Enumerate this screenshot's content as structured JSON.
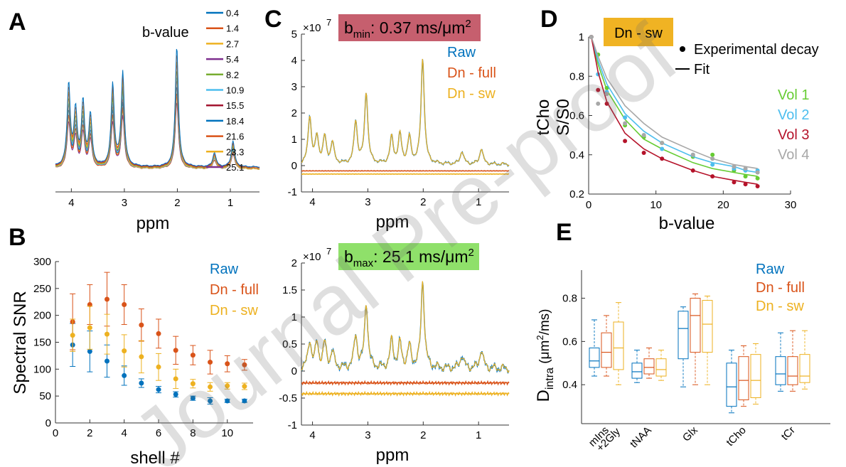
{
  "colors": {
    "raw": "#0072bd",
    "dn_full": "#d95319",
    "dn_sw": "#edb120",
    "vol1": "#66cc33",
    "vol2": "#4dbeee",
    "vol3": "#b5132a",
    "vol4": "#a8a8a8",
    "bmin_box": "#c65f6e",
    "bmax_box": "#8fe06a",
    "dnsw_box": "#f0b323"
  },
  "panels": {
    "A": {
      "letter": "A"
    },
    "B": {
      "letter": "B"
    },
    "C": {
      "letter": "C"
    },
    "D": {
      "letter": "D"
    },
    "E": {
      "letter": "E"
    }
  },
  "watermark": "Journal Pre-proof",
  "chart_data": [
    {
      "id": "A",
      "type": "line",
      "xlabel": "ppm",
      "x_reversed": true,
      "xlim": [
        4.3,
        0.45
      ],
      "x_ticks": [
        "4",
        "3",
        "2",
        "1"
      ],
      "legend_title": "b-value",
      "series_colors": [
        "#0072bd",
        "#d95319",
        "#edb120",
        "#7e2f8e",
        "#77ac30",
        "#4dbeee",
        "#a2142f",
        "#0072bd",
        "#d95319",
        "#edb120",
        "#7e2f8e"
      ],
      "legend": [
        "0.4",
        "1.4",
        "2.7",
        "5.4",
        "8.2",
        "10.9",
        "15.5",
        "18.4",
        "21.6",
        "23.3",
        "25.1"
      ],
      "peaks_ppm": [
        4.05,
        3.92,
        3.78,
        3.64,
        3.22,
        3.03,
        2.01,
        1.3,
        0.95
      ],
      "peak_relative_height_max": [
        0.68,
        0.45,
        0.52,
        0.42,
        0.68,
        0.78,
        1.0,
        0.12,
        0.22
      ]
    },
    {
      "id": "B",
      "type": "scatter",
      "xlabel": "shell #",
      "ylabel": "Spectral SNR",
      "xlim": [
        0,
        11.5
      ],
      "ylim": [
        0,
        300
      ],
      "x_ticks": [
        "0",
        "2",
        "4",
        "6",
        "8",
        "10"
      ],
      "y_ticks": [
        "0",
        "50",
        "100",
        "150",
        "200",
        "250",
        "300"
      ],
      "x": [
        1,
        2,
        3,
        4,
        5,
        6,
        7,
        8,
        9,
        10,
        11
      ],
      "series": [
        {
          "name": "Raw",
          "values": [
            145,
            133,
            115,
            88,
            74,
            62,
            53,
            46,
            41,
            41,
            41
          ],
          "err": [
            40,
            38,
            30,
            18,
            8,
            6,
            5,
            4,
            6,
            3,
            3
          ]
        },
        {
          "name": "Dn - full",
          "values": [
            188,
            220,
            230,
            220,
            182,
            166,
            135,
            126,
            113,
            110,
            108
          ],
          "err": [
            52,
            37,
            50,
            37,
            30,
            27,
            26,
            18,
            22,
            15,
            10
          ]
        },
        {
          "name": "Dn - sw",
          "values": [
            163,
            177,
            165,
            134,
            123,
            104,
            82,
            73,
            67,
            69,
            68
          ],
          "err": [
            30,
            40,
            37,
            30,
            30,
            25,
            18,
            8,
            8,
            6,
            6
          ]
        }
      ]
    },
    {
      "id": "C",
      "type": "line",
      "xlabel": "ppm",
      "x_reversed": true,
      "xlim": [
        4.2,
        0.45
      ],
      "x_ticks": [
        "4",
        "3",
        "2",
        "1"
      ],
      "subplots": [
        {
          "annotation_main": "b",
          "annotation_sub": "min",
          "annotation_rest": ": 0.37 ms/μm",
          "annotation_sup": "2",
          "exponent_base": "×10",
          "exponent_sup": "7",
          "ylim": [
            -1,
            5
          ],
          "y_ticks": [
            "-1",
            "0",
            "1",
            "2",
            "3",
            "4",
            "5"
          ],
          "legend": [
            "Raw",
            "Dn - full",
            "Dn - sw"
          ],
          "offsets": {
            "dn_full": -0.2,
            "dn_sw": -0.32
          },
          "peaks_ppm": [
            4.05,
            3.92,
            3.78,
            3.64,
            3.22,
            3.03,
            2.57,
            2.42,
            2.25,
            2.01,
            1.3,
            0.95
          ],
          "peak_heights": [
            1.8,
            1.0,
            1.0,
            0.8,
            1.6,
            2.7,
            1.0,
            1.1,
            1.0,
            4.0,
            0.5,
            0.6
          ]
        },
        {
          "annotation_main": "b",
          "annotation_sub": "max",
          "annotation_rest": ": 25.1 ms/μm",
          "annotation_sup": "2",
          "exponent_base": "×10",
          "exponent_sup": "7",
          "ylim": [
            -1,
            2
          ],
          "y_ticks": [
            "-1",
            "-0.5",
            "0",
            "0.5",
            "1",
            "1.5",
            "2"
          ],
          "offsets": {
            "dn_full": -0.22,
            "dn_sw": -0.42
          },
          "peaks_ppm": [
            4.05,
            3.92,
            3.78,
            3.64,
            3.22,
            3.03,
            2.57,
            2.42,
            2.25,
            2.01,
            1.3,
            0.95
          ],
          "peak_heights": [
            0.5,
            0.45,
            0.45,
            0.3,
            0.6,
            1.2,
            0.5,
            0.45,
            0.4,
            1.62,
            0.25,
            0.35
          ]
        }
      ]
    },
    {
      "id": "D",
      "type": "scatter",
      "title": "Dn - sw",
      "xlabel": "b-value",
      "ylabel_line1": "tCho",
      "ylabel_line2": "S/S0",
      "xlim": [
        0,
        30
      ],
      "ylim": [
        0.2,
        1.0
      ],
      "x_ticks": [
        "0",
        "10",
        "20",
        "30"
      ],
      "y_ticks": [
        "0.2",
        "0.4",
        "0.6",
        "0.8",
        "1"
      ],
      "legend_markers": [
        "Experimental decay",
        "Fit"
      ],
      "x": [
        0.4,
        1.4,
        2.7,
        5.4,
        8.2,
        10.9,
        15.5,
        18.4,
        21.6,
        23.3,
        25.1
      ],
      "series": [
        {
          "name": "Vol 1",
          "points": [
            1.0,
            0.91,
            0.74,
            0.55,
            0.49,
            0.46,
            0.39,
            0.4,
            0.32,
            0.29,
            0.28
          ],
          "fit": [
            1.0,
            0.86,
            0.73,
            0.58,
            0.48,
            0.43,
            0.36,
            0.33,
            0.31,
            0.3,
            0.29
          ]
        },
        {
          "name": "Vol 2",
          "points": [
            1.0,
            0.81,
            0.72,
            0.59,
            0.5,
            0.43,
            0.4,
            0.35,
            0.33,
            0.32,
            0.32
          ],
          "fit": [
            1.0,
            0.88,
            0.76,
            0.61,
            0.52,
            0.46,
            0.39,
            0.36,
            0.34,
            0.32,
            0.31
          ]
        },
        {
          "name": "Vol 3",
          "points": [
            1.0,
            0.73,
            0.66,
            0.47,
            0.41,
            0.38,
            0.32,
            0.29,
            0.26,
            0.25,
            0.24
          ],
          "fit": [
            1.0,
            0.82,
            0.67,
            0.51,
            0.43,
            0.38,
            0.32,
            0.29,
            0.27,
            0.26,
            0.25
          ]
        },
        {
          "name": "Vol 4",
          "points": [
            1.0,
            0.66,
            0.71,
            0.56,
            0.5,
            0.46,
            0.4,
            0.38,
            0.34,
            0.33,
            0.31
          ],
          "fit": [
            1.0,
            0.9,
            0.79,
            0.65,
            0.56,
            0.49,
            0.42,
            0.38,
            0.35,
            0.34,
            0.33
          ]
        }
      ]
    },
    {
      "id": "E",
      "type": "box",
      "ylabel_main": "D",
      "ylabel_sub": "intra",
      "ylabel_mid": " (μm",
      "ylabel_sup": "2",
      "ylabel_end": "/ms)",
      "ylim": [
        0.22,
        0.93
      ],
      "y_ticks": [
        "0.4",
        "0.6",
        "0.8"
      ],
      "categories": [
        "mIns +2Gly",
        "tNAA",
        "Glx",
        "tCho",
        "tCr"
      ],
      "category_lines": [
        [
          "mIns",
          "+2Gly"
        ],
        [
          "tNAA"
        ],
        [
          "Glx"
        ],
        [
          "tCho"
        ],
        [
          "tCr"
        ]
      ],
      "legend": [
        "Raw",
        "Dn - full",
        "Dn - sw"
      ],
      "series": [
        {
          "name": "Raw",
          "boxes": [
            {
              "min": 0.44,
              "q1": 0.48,
              "median": 0.51,
              "q3": 0.57,
              "max": 0.7
            },
            {
              "min": 0.41,
              "q1": 0.43,
              "median": 0.46,
              "q3": 0.5,
              "max": 0.56
            },
            {
              "min": 0.39,
              "q1": 0.52,
              "median": 0.66,
              "q3": 0.74,
              "max": 0.76
            },
            {
              "min": 0.27,
              "q1": 0.3,
              "median": 0.39,
              "q3": 0.5,
              "max": 0.56
            },
            {
              "min": 0.37,
              "q1": 0.4,
              "median": 0.45,
              "q3": 0.53,
              "max": 0.64
            }
          ]
        },
        {
          "name": "Dn - full",
          "boxes": [
            {
              "min": 0.44,
              "q1": 0.48,
              "median": 0.55,
              "q3": 0.64,
              "max": 0.72
            },
            {
              "min": 0.43,
              "q1": 0.45,
              "median": 0.48,
              "q3": 0.52,
              "max": 0.57
            },
            {
              "min": 0.4,
              "q1": 0.55,
              "median": 0.72,
              "q3": 0.8,
              "max": 0.82
            },
            {
              "min": 0.3,
              "q1": 0.33,
              "median": 0.42,
              "q3": 0.53,
              "max": 0.58
            },
            {
              "min": 0.37,
              "q1": 0.4,
              "median": 0.44,
              "q3": 0.53,
              "max": 0.65
            }
          ]
        },
        {
          "name": "Dn - sw",
          "boxes": [
            {
              "min": 0.4,
              "q1": 0.47,
              "median": 0.57,
              "q3": 0.69,
              "max": 0.78
            },
            {
              "min": 0.42,
              "q1": 0.44,
              "median": 0.47,
              "q3": 0.52,
              "max": 0.56
            },
            {
              "min": 0.4,
              "q1": 0.55,
              "median": 0.68,
              "q3": 0.79,
              "max": 0.81
            },
            {
              "min": 0.31,
              "q1": 0.34,
              "median": 0.42,
              "q3": 0.54,
              "max": 0.59
            },
            {
              "min": 0.38,
              "q1": 0.41,
              "median": 0.44,
              "q3": 0.54,
              "max": 0.65
            }
          ]
        }
      ]
    }
  ]
}
